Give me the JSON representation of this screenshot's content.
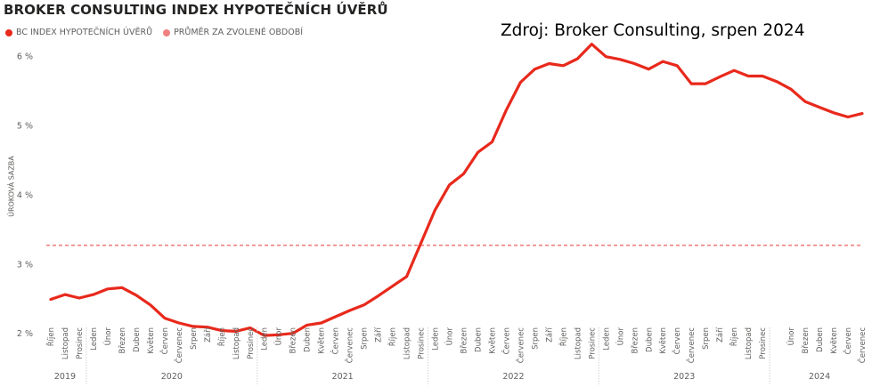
{
  "title": "BROKER CONSULTING INDEX HYPOTEČNÍCH ÚVĚRŮ",
  "source_note": "Zdroj: Broker Consulting, srpen 2024",
  "colors": {
    "index": "#e8291c",
    "average": "#f08080"
  },
  "chart_data": {
    "type": "line",
    "title": "BROKER CONSULTING INDEX HYPOTEČNÍCH ÚVĚRŮ",
    "xlabel": "",
    "ylabel": "ÚROKOVÁ SAZBA",
    "ylim": [
      1.65,
      6.55
    ],
    "yticks": [
      2,
      3,
      4,
      5,
      6
    ],
    "ytick_labels": [
      "2 %",
      "3 %",
      "4 %",
      "5 %",
      "6 %"
    ],
    "grid": false,
    "legend_position": "top-left",
    "series": [
      {
        "name": "BC INDEX HYPOTEČNÍCH ÚVĚRŮ",
        "style": "solid",
        "values": [
          2.49,
          2.56,
          2.51,
          2.56,
          2.64,
          2.66,
          2.55,
          2.41,
          2.22,
          2.15,
          2.1,
          2.09,
          2.04,
          2.03,
          2.08,
          1.97,
          1.98,
          2.0,
          2.12,
          2.15,
          2.24,
          2.33,
          2.41,
          2.54,
          2.68,
          2.82,
          3.3,
          3.78,
          4.14,
          4.3,
          4.61,
          4.76,
          5.22,
          5.62,
          5.81,
          5.89,
          5.86,
          5.96,
          6.17,
          5.99,
          5.95,
          5.89,
          5.81,
          5.92,
          5.86,
          5.6,
          5.6,
          5.7,
          5.79,
          5.71,
          5.71,
          5.63,
          5.52,
          5.34,
          5.26,
          5.18,
          5.12,
          5.17
        ]
      },
      {
        "name": "PRŮMĚR ZA ZVOLENÉ OBDOBÍ",
        "style": "dashed",
        "value": 3.27
      }
    ],
    "x_month_labels": [
      "Říjen",
      "Listopad",
      "Prosinec",
      "Leden",
      "Únor",
      "Březen",
      "Duben",
      "Květen",
      "Červen",
      "Červenec",
      "Srpen",
      "Září",
      "Říjen",
      "Listopad",
      "Prosinec",
      "Leden",
      "Únor",
      "Březen",
      "Duben",
      "Květen",
      "Červen",
      "Červenec",
      "Srpen",
      "Září",
      "Říjen",
      "Listopad",
      "Prosinec",
      "Leden",
      "Únor",
      "Březen",
      "Duben",
      "Květen",
      "Červen",
      "Červenec",
      "Srpen",
      "Září",
      "Říjen",
      "Listopad",
      "Prosinec",
      "Leden",
      "Únor",
      "Březen",
      "Duben",
      "Květen",
      "Červen",
      "Červenec",
      "Srpen",
      "Září",
      "Říjen",
      "Listopad",
      "Prosinec",
      "Únor",
      "Březen",
      "Duben",
      "Květen",
      "Červen",
      "Červenec"
    ],
    "x_month_index": [
      0,
      1,
      2,
      3,
      4,
      5,
      6,
      7,
      8,
      9,
      10,
      11,
      12,
      13,
      14,
      15,
      16,
      17,
      18,
      19,
      20,
      21,
      22,
      23,
      24,
      25,
      26,
      27,
      28,
      29,
      30,
      31,
      32,
      33,
      34,
      35,
      36,
      37,
      38,
      39,
      40,
      41,
      42,
      43,
      44,
      45,
      46,
      47,
      48,
      49,
      50,
      52,
      53,
      54,
      55,
      56,
      57
    ],
    "x_year_groups": [
      {
        "label": "2019",
        "start": 0,
        "end": 2
      },
      {
        "label": "2020",
        "start": 3,
        "end": 14
      },
      {
        "label": "2021",
        "start": 15,
        "end": 26
      },
      {
        "label": "2022",
        "start": 27,
        "end": 38
      },
      {
        "label": "2023",
        "start": 39,
        "end": 50
      },
      {
        "label": "2024",
        "start": 51,
        "end": 57
      }
    ]
  }
}
